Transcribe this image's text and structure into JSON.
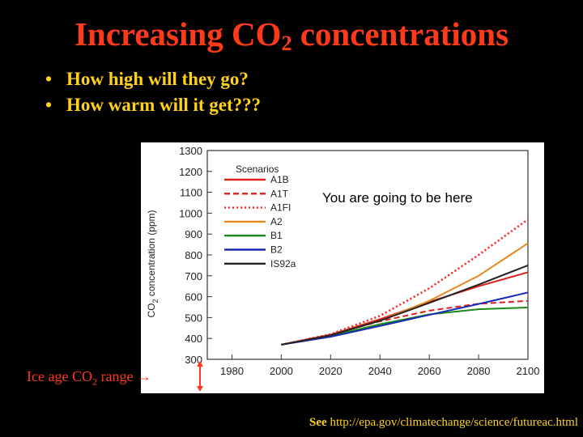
{
  "slide": {
    "title_main": "Increasing CO",
    "title_sub": "2",
    "title_rest": " concentrations",
    "bullets": [
      "How high will they go?",
      "How warm will it get???"
    ],
    "ice_label_main": "Ice age CO",
    "ice_label_sub": "2",
    "ice_label_rest": " range",
    "see_lead": "See",
    "see_url": "http://epa.gov/climatechange/science/futureac.html",
    "colors": {
      "title": "#ff3a1a",
      "bullets": "#ffd21a",
      "background": "#000000"
    }
  },
  "chart_data": {
    "type": "line",
    "xlabel": "",
    "ylabel_main": "CO",
    "ylabel_sub": "2",
    "ylabel_rest": " concentration (ppm)",
    "xlim": [
      1970,
      2100
    ],
    "ylim": [
      300,
      1300
    ],
    "x_ticks": [
      1980,
      2000,
      2020,
      2040,
      2060,
      2080,
      2100
    ],
    "y_ticks": [
      300,
      400,
      500,
      600,
      700,
      800,
      900,
      1000,
      1100,
      1200,
      1300
    ],
    "legend_title": "Scenarios",
    "legend_placement": "top-left",
    "annotation": "You are going to be here",
    "x": [
      2000,
      2020,
      2040,
      2060,
      2080,
      2100
    ],
    "series": [
      {
        "name": "A1B",
        "color": "#e0201a",
        "dash": "solid",
        "values": [
          370,
          418,
          492,
          575,
          650,
          717
        ]
      },
      {
        "name": "A1T",
        "color": "#e0201a",
        "dash": "dashed",
        "values": [
          370,
          418,
          482,
          533,
          566,
          580
        ]
      },
      {
        "name": "A1FI",
        "color": "#ff2020",
        "dash": "dotted",
        "values": [
          370,
          420,
          508,
          640,
          800,
          970
        ]
      },
      {
        "name": "A2",
        "color": "#e8871e",
        "dash": "solid",
        "values": [
          370,
          415,
          485,
          580,
          700,
          856
        ]
      },
      {
        "name": "B1",
        "color": "#1b8a1b",
        "dash": "solid",
        "values": [
          370,
          412,
          468,
          515,
          540,
          548
        ]
      },
      {
        "name": "B2",
        "color": "#1a2ab0",
        "dash": "solid",
        "values": [
          370,
          408,
          460,
          513,
          565,
          620
        ]
      },
      {
        "name": "IS92a",
        "color": "#222222",
        "dash": "solid",
        "values": [
          370,
          415,
          485,
          570,
          658,
          750
        ]
      }
    ]
  }
}
